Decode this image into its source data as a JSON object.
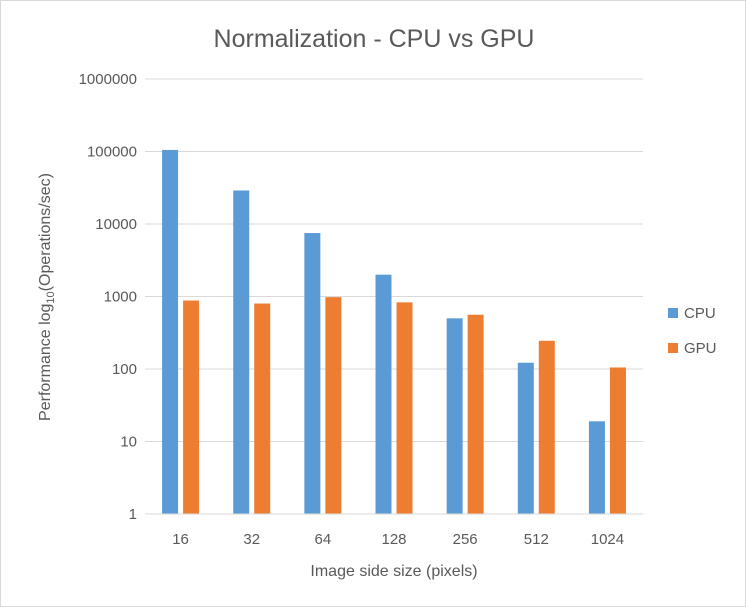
{
  "chart_data": {
    "type": "bar",
    "title": "Normalization  - CPU vs GPU",
    "xlabel": "Image side size (pixels)",
    "ylabel": {
      "prefix": "Performance log",
      "subscript": "10",
      "suffix": "(Operations/sec)"
    },
    "yscale": "log",
    "ylim": [
      1,
      1000000
    ],
    "yticks": [
      "1",
      "10",
      "100",
      "1000",
      "10000",
      "100000",
      "1000000"
    ],
    "categories": [
      "16",
      "32",
      "64",
      "128",
      "256",
      "512",
      "1024"
    ],
    "series": [
      {
        "name": "CPU",
        "color": "#5b9bd5",
        "values": [
          105000,
          29000,
          7500,
          2000,
          500,
          122,
          19
        ]
      },
      {
        "name": "GPU",
        "color": "#ed7d31",
        "values": [
          880,
          800,
          980,
          830,
          560,
          245,
          105
        ]
      }
    ],
    "grid": true,
    "legend_position": "right"
  }
}
